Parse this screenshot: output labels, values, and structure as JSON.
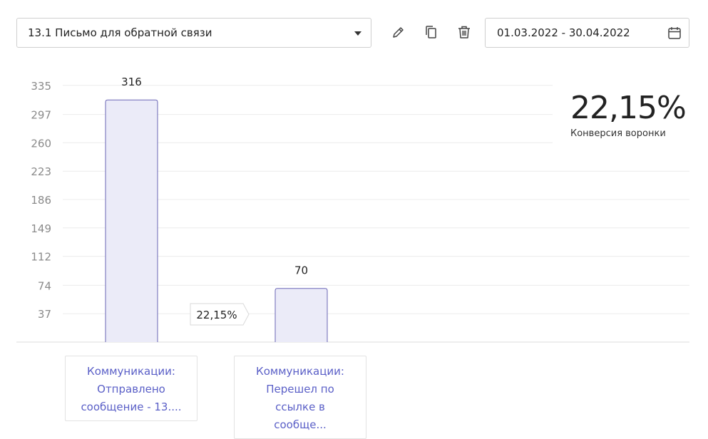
{
  "toolbar": {
    "funnel_select_value": "13.1 Письмо для обратной связи",
    "date_range": "01.03.2022 - 30.04.2022"
  },
  "icons": {
    "edit": "pencil-icon",
    "copy": "copy-icon",
    "delete": "trash-icon",
    "calendar": "calendar-icon",
    "caret": "caret-down-icon"
  },
  "kpi": {
    "value": "22,15%",
    "label": "Конверсия воронки"
  },
  "chart_data": {
    "type": "bar",
    "categories": [
      "Коммуникации: Отправлено сообщение - 13....",
      "Коммуникации: Перешел по ссылке в сообще..."
    ],
    "category_lines": [
      [
        "Коммуникации:",
        "Отправлено",
        "сообщение - 13...."
      ],
      [
        "Коммуникации:",
        "Перешел по",
        "ссылке в",
        "сообще..."
      ]
    ],
    "values": [
      316,
      70
    ],
    "value_labels": [
      "316",
      "70"
    ],
    "y_ticks": [
      "37",
      "74",
      "112",
      "149",
      "186",
      "223",
      "260",
      "297",
      "335"
    ],
    "ylim": [
      0,
      372
    ],
    "step_conversions": [
      "22,15%"
    ],
    "grid": true,
    "colors": {
      "bar_fill": "#ebebf8",
      "bar_stroke": "#6a65b5",
      "grid": "#ececec",
      "tick_label": "#8a8a8a",
      "category_text": "#5a5fc7"
    }
  }
}
